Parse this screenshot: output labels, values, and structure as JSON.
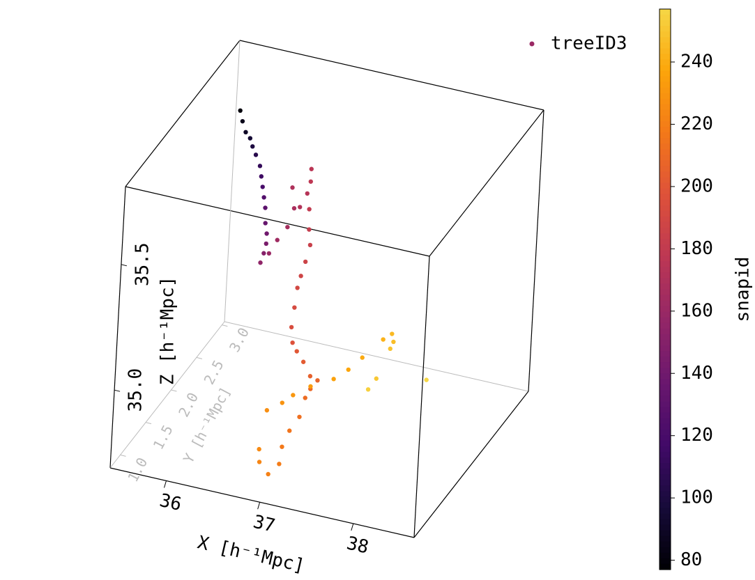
{
  "chart_data": {
    "type": "scatter3d",
    "xlabel": "X [h⁻¹Mpc]",
    "ylabel": "Y [h⁻¹Mpc]",
    "zlabel": "Z [h⁻¹Mpc]",
    "xlim": [
      35.4,
      38.65
    ],
    "ylim": [
      0.8,
      3.05
    ],
    "zlim": [
      34.69,
      35.81
    ],
    "xticks": [
      36,
      37,
      38
    ],
    "yticks": [
      {
        "value": 1,
        "label": "1.0"
      },
      1.5,
      {
        "value": 2,
        "label": "2.0"
      },
      2.5,
      {
        "value": 3,
        "label": "3.0"
      }
    ],
    "zticks": [
      {
        "value": 35,
        "label": "35.0"
      },
      35.5
    ],
    "colorbar": {
      "label": "snapid",
      "colormap": "inferno",
      "clim": [
        77,
        257
      ],
      "ticks": [
        80,
        100,
        120,
        140,
        160,
        180,
        200,
        220,
        240
      ]
    },
    "legend": "upper right",
    "series": [
      {
        "name": "treeID3",
        "color": "#9a2964",
        "x": [
          35.67,
          35.7,
          35.74,
          35.79,
          35.82,
          35.86,
          35.91,
          35.93,
          35.95,
          35.97,
          35.99,
          36.0,
          36.02,
          36.02,
          36.0,
          35.97,
          36.33,
          36.41,
          36.51,
          36.57,
          36.54,
          36.63,
          36.7,
          36.73,
          36.73,
          36.73,
          36.74,
          36.76,
          36.72,
          36.68,
          36.65,
          36.63,
          36.61,
          36.63,
          36.68,
          37.03,
          37.11,
          37.19,
          37.12,
          37.07,
          37.02,
          37.16,
          37.09,
          37.07,
          36.96,
          36.86,
          36.85,
          36.91,
          36.83,
          36.94,
          37.12,
          37.36,
          37.51,
          37.65,
          37.86,
          37.95,
          37.97,
          37.94,
          37.81,
          37.73,
          38.34
        ],
        "y": [
          2.6,
          2.6,
          2.6,
          2.6,
          2.6,
          2.6,
          2.6,
          2.6,
          2.6,
          2.6,
          2.6,
          2.6,
          2.6,
          2.6,
          2.6,
          2.6,
          2.05,
          2.05,
          2.05,
          2.05,
          2.05,
          2.05,
          2.05,
          2.05,
          2.05,
          2.05,
          2.05,
          2.05,
          2.05,
          2.05,
          2.05,
          2.05,
          2.05,
          2.05,
          2.05,
          1.5,
          1.5,
          1.5,
          1.5,
          1.5,
          1.5,
          1.025,
          1.025,
          1.025,
          1.025,
          1.025,
          1.025,
          1.025,
          1.5,
          1.5,
          1.5,
          1.5,
          1.5,
          1.5,
          1.5,
          1.5,
          1.5,
          1.5,
          1.5,
          1.5,
          1.5
        ],
        "z": [
          35.67,
          35.63,
          35.59,
          35.57,
          35.54,
          35.51,
          35.47,
          35.43,
          35.39,
          35.35,
          35.31,
          35.25,
          35.21,
          35.17,
          35.13,
          35.09,
          35.3,
          35.36,
          35.42,
          35.5,
          35.58,
          35.51,
          35.57,
          35.67,
          35.62,
          35.51,
          35.43,
          35.37,
          35.3,
          35.24,
          35.19,
          35.11,
          35.03,
          34.97,
          34.94,
          35.07,
          35.02,
          35.01,
          34.97,
          34.93,
          34.85,
          34.93,
          34.86,
          34.79,
          34.74,
          34.78,
          34.83,
          34.99,
          34.89,
          34.93,
          34.98,
          35.03,
          35.08,
          35.14,
          35.23,
          35.26,
          35.23,
          35.2,
          35.07,
          35.02,
          35.11
        ],
        "c": [
          80,
          85,
          90,
          95,
          100,
          105,
          110,
          115,
          120,
          125,
          130,
          135,
          140,
          145,
          150,
          155,
          160,
          163,
          166,
          168,
          170,
          172,
          174,
          176,
          178,
          180,
          182,
          184,
          186,
          188,
          190,
          192,
          194,
          197,
          200,
          202,
          205,
          207,
          209,
          211,
          213,
          215,
          217,
          219,
          221,
          223,
          225,
          227,
          229,
          231,
          233,
          235,
          237,
          239,
          242,
          245,
          247,
          249,
          251,
          254,
          257
        ]
      }
    ]
  }
}
